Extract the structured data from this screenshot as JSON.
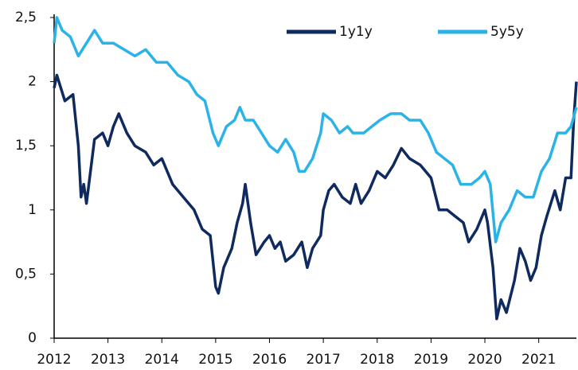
{
  "chart_data": {
    "type": "line",
    "xlim": [
      2012,
      2021.7
    ],
    "xticks": [
      2012,
      2013,
      2014,
      2015,
      2016,
      2017,
      2018,
      2019,
      2020,
      2021
    ],
    "ylim": [
      0,
      2.5
    ],
    "yticks": [
      {
        "value": 2.5,
        "label": "2,5"
      },
      2,
      {
        "value": 1.5,
        "label": "1,5"
      },
      1,
      {
        "value": 0.5,
        "label": "0,5"
      },
      0
    ],
    "grid": false,
    "legend": "top-right",
    "series": [
      {
        "name": "1y1y",
        "color": "#0f2a5e",
        "x": [
          2012.0,
          2012.05,
          2012.2,
          2012.35,
          2012.45,
          2012.5,
          2012.55,
          2012.6,
          2012.75,
          2012.9,
          2013.0,
          2013.1,
          2013.2,
          2013.35,
          2013.5,
          2013.7,
          2013.85,
          2014.0,
          2014.2,
          2014.4,
          2014.6,
          2014.75,
          2014.9,
          2015.0,
          2015.05,
          2015.15,
          2015.3,
          2015.4,
          2015.5,
          2015.55,
          2015.65,
          2015.75,
          2015.9,
          2016.0,
          2016.1,
          2016.2,
          2016.3,
          2016.45,
          2016.6,
          2016.7,
          2016.8,
          2016.95,
          2017.0,
          2017.1,
          2017.2,
          2017.35,
          2017.5,
          2017.6,
          2017.7,
          2017.85,
          2018.0,
          2018.15,
          2018.3,
          2018.45,
          2018.6,
          2018.8,
          2019.0,
          2019.15,
          2019.3,
          2019.45,
          2019.6,
          2019.7,
          2019.85,
          2020.0,
          2020.05,
          2020.15,
          2020.22,
          2020.3,
          2020.4,
          2020.55,
          2020.65,
          2020.75,
          2020.85,
          2020.95,
          2021.05,
          2021.15,
          2021.3,
          2021.4,
          2021.5,
          2021.6,
          2021.65,
          2021.7
        ],
        "values": [
          1.95,
          2.05,
          1.85,
          1.9,
          1.5,
          1.1,
          1.2,
          1.05,
          1.55,
          1.6,
          1.5,
          1.65,
          1.75,
          1.6,
          1.5,
          1.45,
          1.35,
          1.4,
          1.2,
          1.1,
          1.0,
          0.85,
          0.8,
          0.4,
          0.35,
          0.55,
          0.7,
          0.9,
          1.05,
          1.2,
          0.9,
          0.65,
          0.75,
          0.8,
          0.7,
          0.75,
          0.6,
          0.65,
          0.75,
          0.55,
          0.7,
          0.8,
          1.0,
          1.15,
          1.2,
          1.1,
          1.05,
          1.2,
          1.05,
          1.15,
          1.3,
          1.25,
          1.35,
          1.48,
          1.4,
          1.35,
          1.25,
          1.0,
          1.0,
          0.95,
          0.9,
          0.75,
          0.85,
          1.0,
          0.9,
          0.55,
          0.15,
          0.3,
          0.2,
          0.45,
          0.7,
          0.6,
          0.45,
          0.55,
          0.8,
          0.95,
          1.15,
          1.0,
          1.25,
          1.25,
          1.7,
          2.0
        ]
      },
      {
        "name": "5y5y",
        "color": "#2bb3e8",
        "x": [
          2012.0,
          2012.05,
          2012.15,
          2012.3,
          2012.45,
          2012.6,
          2012.75,
          2012.9,
          2013.1,
          2013.3,
          2013.5,
          2013.7,
          2013.9,
          2014.1,
          2014.3,
          2014.5,
          2014.65,
          2014.8,
          2014.95,
          2015.05,
          2015.2,
          2015.35,
          2015.45,
          2015.55,
          2015.7,
          2015.85,
          2016.0,
          2016.15,
          2016.3,
          2016.45,
          2016.55,
          2016.65,
          2016.8,
          2016.95,
          2017.0,
          2017.15,
          2017.3,
          2017.45,
          2017.55,
          2017.75,
          2017.9,
          2018.05,
          2018.25,
          2018.45,
          2018.6,
          2018.8,
          2018.95,
          2019.1,
          2019.25,
          2019.4,
          2019.55,
          2019.75,
          2019.9,
          2020.0,
          2020.1,
          2020.2,
          2020.3,
          2020.45,
          2020.6,
          2020.75,
          2020.9,
          2021.05,
          2021.2,
          2021.35,
          2021.5,
          2021.6,
          2021.7
        ],
        "values": [
          2.3,
          2.5,
          2.4,
          2.35,
          2.2,
          2.3,
          2.4,
          2.3,
          2.3,
          2.25,
          2.2,
          2.25,
          2.15,
          2.15,
          2.05,
          2.0,
          1.9,
          1.85,
          1.6,
          1.5,
          1.65,
          1.7,
          1.8,
          1.7,
          1.7,
          1.6,
          1.5,
          1.45,
          1.55,
          1.45,
          1.3,
          1.3,
          1.4,
          1.6,
          1.75,
          1.7,
          1.6,
          1.65,
          1.6,
          1.6,
          1.65,
          1.7,
          1.75,
          1.75,
          1.7,
          1.7,
          1.6,
          1.45,
          1.4,
          1.35,
          1.2,
          1.2,
          1.25,
          1.3,
          1.2,
          0.75,
          0.9,
          1.0,
          1.15,
          1.1,
          1.1,
          1.3,
          1.4,
          1.6,
          1.6,
          1.65,
          1.8
        ]
      }
    ]
  }
}
